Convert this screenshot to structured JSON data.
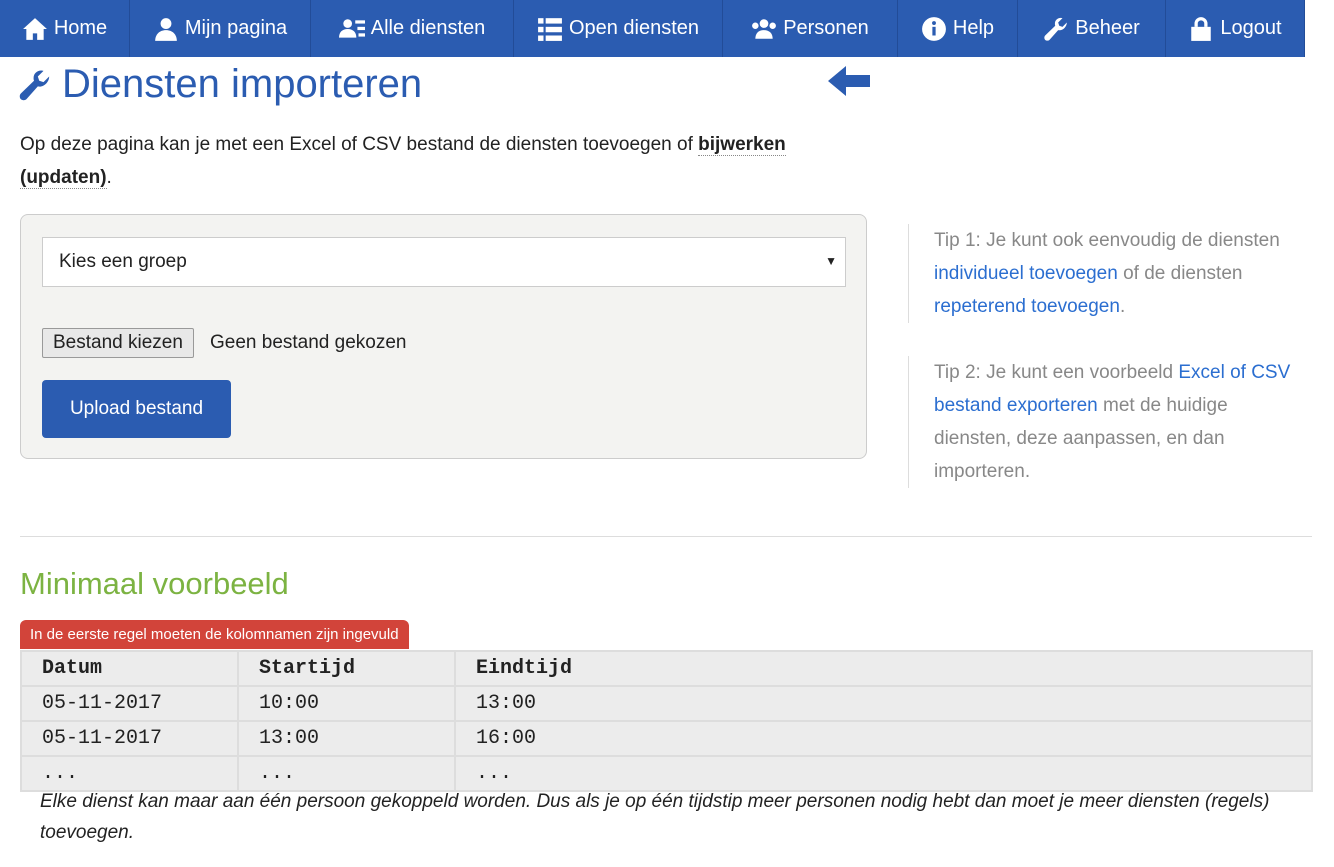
{
  "nav": [
    {
      "label": "Home",
      "icon": "home-icon"
    },
    {
      "label": "Mijn pagina",
      "icon": "user-icon"
    },
    {
      "label": "Alle diensten",
      "icon": "users-list-icon"
    },
    {
      "label": "Open diensten",
      "icon": "list-icon"
    },
    {
      "label": "Personen",
      "icon": "users-icon"
    },
    {
      "label": "Help",
      "icon": "info-icon"
    },
    {
      "label": "Beheer",
      "icon": "wrench-icon"
    },
    {
      "label": "Logout",
      "icon": "lock-icon"
    }
  ],
  "page": {
    "title": "Diensten importeren",
    "intro": "Op deze pagina kan je met een Excel of CSV bestand de diensten toevoegen of ",
    "intro_bold": "bijwerken (updaten)",
    "intro_end": "."
  },
  "form": {
    "group_select": "Kies een groep",
    "file_button": "Bestand kiezen",
    "file_status": "Geen bestand gekozen",
    "upload": "Upload bestand"
  },
  "tip1": {
    "a": "Tip 1: Je kunt ook eenvoudig de diensten ",
    "link1": "individueel toevoegen",
    "b": " of de diensten ",
    "link2": "repeterend toevoegen",
    "c": "."
  },
  "tip2": {
    "a": "Tip 2: Je kunt een voorbeeld ",
    "link": "Excel of CSV bestand exporteren",
    "b": " met de huidige diensten, deze aanpassen, en dan importeren."
  },
  "example": {
    "heading": "Minimaal voorbeeld",
    "badge": "In de eerste regel moeten de kolomnamen zijn ingevuld",
    "headers": [
      "Datum",
      "Startijd",
      "Eindtijd"
    ],
    "rows": [
      [
        "05-11-2017",
        "10:00",
        "13:00"
      ],
      [
        "05-11-2017",
        "13:00",
        "16:00"
      ],
      [
        "...",
        "...",
        "..."
      ]
    ],
    "note": "Elke dienst kan maar aan één persoon gekoppeld worden. Dus als je op één tijdstip meer personen nodig hebt dan moet je meer diensten (regels) toevoegen."
  },
  "colors": {
    "primary": "#2b5cb1",
    "accent_green": "#7cb342",
    "badge_red": "#d2443a"
  }
}
